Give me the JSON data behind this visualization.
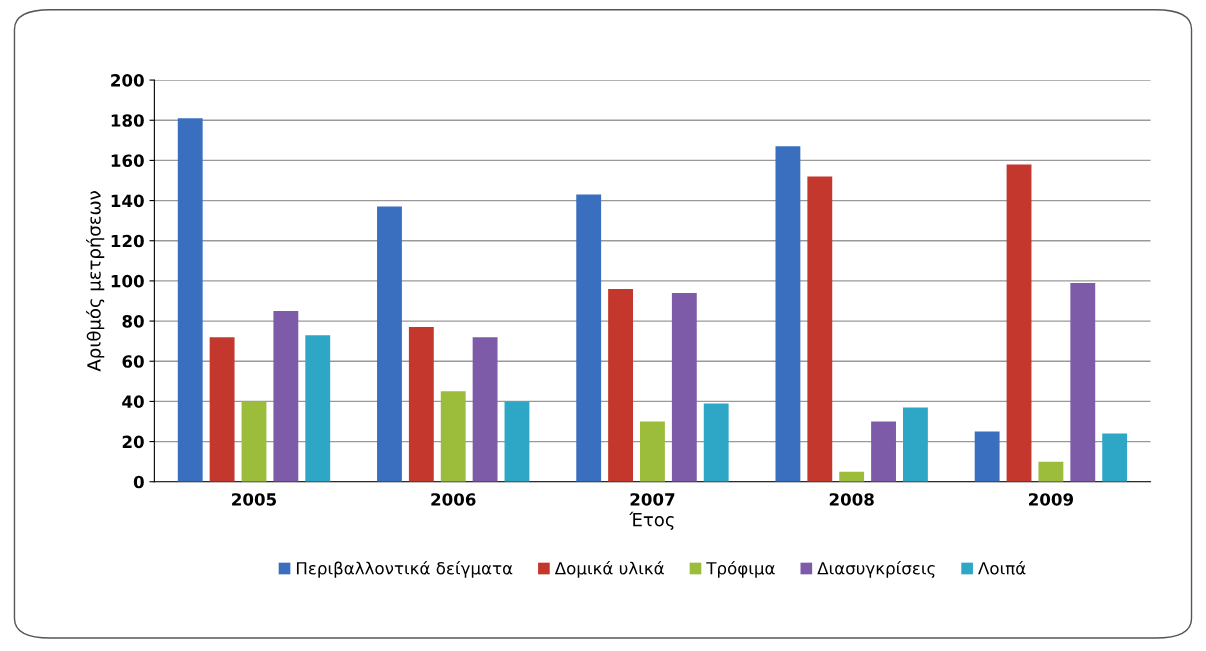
{
  "chart_data": {
    "type": "bar",
    "xlabel": "Έτος",
    "ylabel": "Αριθμός μετρήσεων",
    "categories": [
      "2005",
      "2006",
      "2007",
      "2008",
      "2009"
    ],
    "series": [
      {
        "name": "Περιβαλλοντικά δείγματα",
        "color": "#3a6fbf",
        "values": [
          181,
          137,
          143,
          167,
          25
        ]
      },
      {
        "name": "Δομικά υλικά",
        "color": "#c4372c",
        "values": [
          72,
          77,
          96,
          152,
          158
        ]
      },
      {
        "name": "Τρόφιμα",
        "color": "#9cbc3c",
        "values": [
          40,
          45,
          30,
          5,
          10
        ]
      },
      {
        "name": "Διασυγκρίσεις",
        "color": "#7e5ba8",
        "values": [
          85,
          72,
          94,
          30,
          99
        ]
      },
      {
        "name": "Λοιπά",
        "color": "#2ea7c6",
        "values": [
          73,
          40,
          39,
          37,
          24
        ]
      }
    ],
    "ylim": [
      0,
      200
    ],
    "yticks": [
      0,
      20,
      40,
      60,
      80,
      100,
      120,
      140,
      160,
      180,
      200
    ],
    "grid": "y",
    "legend": "bottom"
  }
}
